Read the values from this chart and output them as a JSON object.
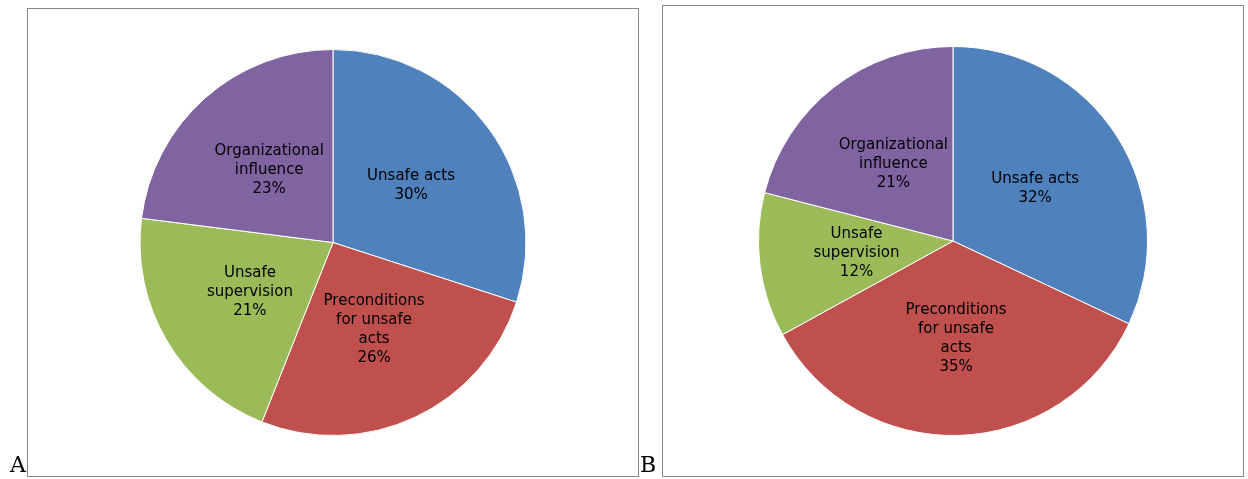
{
  "chart_data": [
    {
      "type": "pie",
      "annotations": [
        "A"
      ],
      "categories": [
        "Unsafe acts",
        "Preconditions for unsafe acts",
        "Unsafe supervision",
        "Organizational influence"
      ],
      "values": [
        30,
        26,
        21,
        23
      ],
      "value_labels": [
        "30%",
        "26%",
        "21%",
        "23%"
      ],
      "colors": [
        "#4f81bd",
        "#c0504d",
        "#9bbb59",
        "#8064a2"
      ],
      "legend": false
    },
    {
      "type": "pie",
      "annotations": [
        "B"
      ],
      "categories": [
        "Unsafe acts",
        "Preconditions for unsafe acts",
        "Unsafe supervision",
        "Organizational influence"
      ],
      "values": [
        32,
        35,
        12,
        21
      ],
      "value_labels": [
        "32%",
        "35%",
        "12%",
        "21%"
      ],
      "colors": [
        "#4f81bd",
        "#c0504d",
        "#9bbb59",
        "#8064a2"
      ],
      "legend": false
    }
  ]
}
